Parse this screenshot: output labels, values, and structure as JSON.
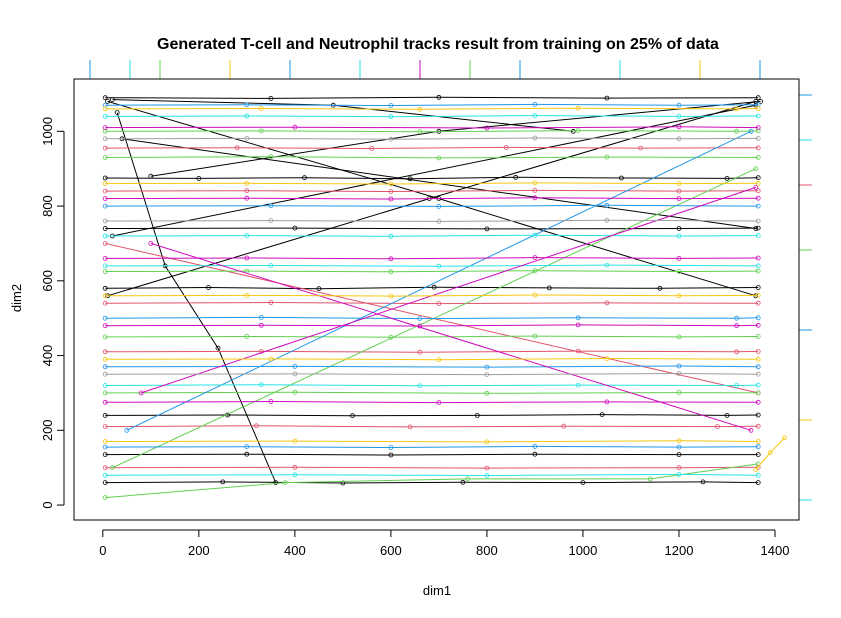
{
  "chart_data": {
    "type": "line",
    "title": "Generated T-cell and Neutrophil tracks result from training on 25% of data",
    "xlabel": "dim1",
    "ylabel": "dim2",
    "xlim": [
      -60,
      1450
    ],
    "ylim": [
      -40,
      1140
    ],
    "x_ticks": [
      0,
      200,
      400,
      600,
      800,
      1000,
      1200,
      1400
    ],
    "y_ticks": [
      0,
      200,
      400,
      600,
      800,
      1000
    ],
    "grid": false,
    "legend": "none",
    "colors": [
      "#000000",
      "#DF536B",
      "#61D04F",
      "#2297E6",
      "#28E2E5",
      "#CD0BBC",
      "#F5C710",
      "#9E9E9E"
    ],
    "series": [
      {
        "color": "#000000",
        "x": [
          5,
          200,
          420,
          640,
          860,
          1080,
          1300,
          1365
        ],
        "y": [
          875,
          874,
          876,
          873,
          877,
          875,
          874,
          876
        ]
      },
      {
        "color": "#000000",
        "x": [
          5,
          220,
          450,
          690,
          930,
          1160,
          1365
        ],
        "y": [
          580,
          582,
          579,
          583,
          581,
          580,
          582
        ]
      },
      {
        "color": "#000000",
        "x": [
          5,
          260,
          520,
          780,
          1040,
          1300,
          1365
        ],
        "y": [
          240,
          241,
          239,
          240,
          242,
          240,
          241
        ]
      },
      {
        "color": "#000000",
        "x": [
          5,
          300,
          600,
          900,
          1200,
          1365
        ],
        "y": [
          135,
          136,
          134,
          136,
          135,
          135
        ]
      },
      {
        "color": "#000000",
        "x": [
          5,
          250,
          500,
          750,
          1000,
          1250,
          1365
        ],
        "y": [
          60,
          62,
          59,
          61,
          60,
          62,
          60
        ]
      },
      {
        "color": "#000000",
        "x": [
          5,
          350,
          700,
          1050,
          1365
        ],
        "y": [
          1090,
          1088,
          1091,
          1089,
          1090
        ]
      },
      {
        "color": "#000000",
        "x": [
          5,
          400,
          800,
          1200,
          1365
        ],
        "y": [
          740,
          741,
          739,
          740,
          741
        ]
      },
      {
        "color": "#000000",
        "x": [
          10,
          700,
          1360
        ],
        "y": [
          1080,
          820,
          560
        ]
      },
      {
        "color": "#000000",
        "x": [
          10,
          680,
          1360
        ],
        "y": [
          560,
          820,
          1080
        ]
      },
      {
        "color": "#000000",
        "x": [
          30,
          130,
          240,
          360
        ],
        "y": [
          1050,
          640,
          420,
          60
        ]
      },
      {
        "color": "#000000",
        "x": [
          40,
          1360
        ],
        "y": [
          980,
          740
        ]
      },
      {
        "color": "#000000",
        "x": [
          20,
          1360
        ],
        "y": [
          720,
          1070
        ]
      },
      {
        "color": "#000000",
        "x": [
          100,
          700,
          1370
        ],
        "y": [
          880,
          1000,
          1080
        ]
      },
      {
        "color": "#000000",
        "x": [
          20,
          480,
          980
        ],
        "y": [
          1085,
          1070,
          1000
        ]
      },
      {
        "color": "#DF536B",
        "x": [
          5,
          300,
          600,
          900,
          1200,
          1365
        ],
        "y": [
          840,
          841,
          839,
          842,
          840,
          841
        ]
      },
      {
        "color": "#DF536B",
        "x": [
          5,
          320,
          640,
          960,
          1280,
          1365
        ],
        "y": [
          210,
          212,
          209,
          211,
          210,
          211
        ]
      },
      {
        "color": "#DF536B",
        "x": [
          5,
          350,
          700,
          1050,
          1365
        ],
        "y": [
          540,
          542,
          539,
          541,
          540
        ]
      },
      {
        "color": "#DF536B",
        "x": [
          5,
          280,
          560,
          840,
          1120,
          1365
        ],
        "y": [
          955,
          956,
          954,
          957,
          955,
          956
        ]
      },
      {
        "color": "#DF536B",
        "x": [
          5,
          330,
          660,
          990,
          1320,
          1365
        ],
        "y": [
          410,
          411,
          409,
          412,
          410,
          411
        ]
      },
      {
        "color": "#DF536B",
        "x": [
          5,
          400,
          800,
          1200,
          1365
        ],
        "y": [
          100,
          101,
          99,
          100,
          101
        ]
      },
      {
        "color": "#DF536B",
        "x": [
          5,
          1365
        ],
        "y": [
          700,
          300
        ]
      },
      {
        "color": "#61D04F",
        "x": [
          5,
          330,
          660,
          990,
          1320,
          1365
        ],
        "y": [
          1000,
          1001,
          999,
          1002,
          1000,
          1001
        ]
      },
      {
        "color": "#61D04F",
        "x": [
          5,
          300,
          600,
          900,
          1200,
          1365
        ],
        "y": [
          450,
          451,
          449,
          452,
          450,
          451
        ]
      },
      {
        "color": "#61D04F",
        "x": [
          5,
          350,
          700,
          1050,
          1365
        ],
        "y": [
          930,
          932,
          929,
          931,
          930
        ]
      },
      {
        "color": "#61D04F",
        "x": [
          5,
          400,
          800,
          1200,
          1365
        ],
        "y": [
          300,
          302,
          299,
          301,
          300
        ]
      },
      {
        "color": "#61D04F",
        "x": [
          5,
          380,
          760,
          1140,
          1365
        ],
        "y": [
          20,
          60,
          70,
          70,
          110
        ]
      },
      {
        "color": "#61D04F",
        "x": [
          5,
          300,
          600,
          900,
          1200,
          1365
        ],
        "y": [
          625,
          626,
          624,
          627,
          625,
          626
        ]
      },
      {
        "color": "#61D04F",
        "x": [
          20,
          1360
        ],
        "y": [
          100,
          900
        ]
      },
      {
        "color": "#2297E6",
        "x": [
          5,
          300,
          600,
          900,
          1200,
          1365
        ],
        "y": [
          1070,
          1071,
          1069,
          1072,
          1070,
          1071
        ]
      },
      {
        "color": "#2297E6",
        "x": [
          5,
          350,
          700,
          1050,
          1365
        ],
        "y": [
          800,
          801,
          799,
          802,
          800
        ]
      },
      {
        "color": "#2297E6",
        "x": [
          5,
          330,
          660,
          990,
          1320,
          1365
        ],
        "y": [
          500,
          502,
          499,
          501,
          500,
          501
        ]
      },
      {
        "color": "#2297E6",
        "x": [
          5,
          300,
          600,
          900,
          1200,
          1365
        ],
        "y": [
          155,
          156,
          154,
          157,
          155,
          156
        ]
      },
      {
        "color": "#2297E6",
        "x": [
          5,
          400,
          800,
          1200,
          1365
        ],
        "y": [
          370,
          371,
          369,
          372,
          370
        ]
      },
      {
        "color": "#2297E6",
        "x": [
          50,
          1350
        ],
        "y": [
          200,
          1000
        ]
      },
      {
        "color": "#28E2E5",
        "x": [
          5,
          350,
          700,
          1050,
          1365
        ],
        "y": [
          640,
          641,
          639,
          642,
          640
        ]
      },
      {
        "color": "#28E2E5",
        "x": [
          5,
          300,
          600,
          900,
          1200,
          1365
        ],
        "y": [
          1040,
          1041,
          1039,
          1042,
          1040,
          1041
        ]
      },
      {
        "color": "#28E2E5",
        "x": [
          5,
          330,
          660,
          990,
          1320,
          1365
        ],
        "y": [
          320,
          322,
          319,
          321,
          320,
          321
        ]
      },
      {
        "color": "#28E2E5",
        "x": [
          5,
          400,
          800,
          1200,
          1365
        ],
        "y": [
          80,
          81,
          79,
          82,
          80
        ]
      },
      {
        "color": "#28E2E5",
        "x": [
          5,
          300,
          600,
          900,
          1200,
          1365
        ],
        "y": [
          720,
          721,
          719,
          722,
          720,
          721
        ]
      },
      {
        "color": "#CD0BBC",
        "x": [
          5,
          300,
          600,
          900,
          1200,
          1365
        ],
        "y": [
          820,
          821,
          819,
          822,
          820,
          821
        ]
      },
      {
        "color": "#CD0BBC",
        "x": [
          5,
          350,
          700,
          1050,
          1365
        ],
        "y": [
          275,
          277,
          274,
          276,
          275
        ]
      },
      {
        "color": "#CD0BBC",
        "x": [
          5,
          330,
          660,
          990,
          1320,
          1365
        ],
        "y": [
          480,
          481,
          479,
          482,
          480,
          481
        ]
      },
      {
        "color": "#CD0BBC",
        "x": [
          5,
          300,
          600,
          900,
          1200,
          1365
        ],
        "y": [
          660,
          661,
          659,
          662,
          660,
          661
        ]
      },
      {
        "color": "#CD0BBC",
        "x": [
          5,
          400,
          800,
          1200,
          1365
        ],
        "y": [
          1010,
          1011,
          1009,
          1012,
          1010
        ]
      },
      {
        "color": "#CD0BBC",
        "x": [
          100,
          1350
        ],
        "y": [
          700,
          200
        ]
      },
      {
        "color": "#CD0BBC",
        "x": [
          80,
          1360
        ],
        "y": [
          300,
          850
        ]
      },
      {
        "color": "#F5C710",
        "x": [
          5,
          300,
          600,
          900,
          1200,
          1365
        ],
        "y": [
          560,
          561,
          559,
          562,
          560,
          561
        ]
      },
      {
        "color": "#F5C710",
        "x": [
          5,
          350,
          700,
          1050,
          1365
        ],
        "y": [
          390,
          391,
          389,
          392,
          390
        ]
      },
      {
        "color": "#F5C710",
        "x": [
          5,
          330,
          660,
          990,
          1320,
          1365
        ],
        "y": [
          1060,
          1061,
          1059,
          1062,
          1060,
          1061
        ]
      },
      {
        "color": "#F5C710",
        "x": [
          5,
          400,
          800,
          1200,
          1365
        ],
        "y": [
          170,
          171,
          169,
          172,
          170
        ]
      },
      {
        "color": "#F5C710",
        "x": [
          5,
          300,
          600,
          900,
          1200,
          1365
        ],
        "y": [
          860,
          861,
          859,
          862,
          860,
          861
        ]
      },
      {
        "color": "#F5C710",
        "x": [
          1360,
          1390,
          1420
        ],
        "y": [
          95,
          140,
          180
        ]
      },
      {
        "color": "#9E9E9E",
        "x": [
          5,
          350,
          700,
          1050,
          1365
        ],
        "y": [
          760,
          761,
          759,
          762,
          760
        ]
      },
      {
        "color": "#9E9E9E",
        "x": [
          5,
          400,
          800,
          1200,
          1365
        ],
        "y": [
          350,
          351,
          349,
          352,
          350
        ]
      },
      {
        "color": "#9E9E9E",
        "x": [
          5,
          300,
          600,
          900,
          1200,
          1365
        ],
        "y": [
          980,
          981,
          979,
          982,
          980,
          981
        ]
      }
    ]
  }
}
